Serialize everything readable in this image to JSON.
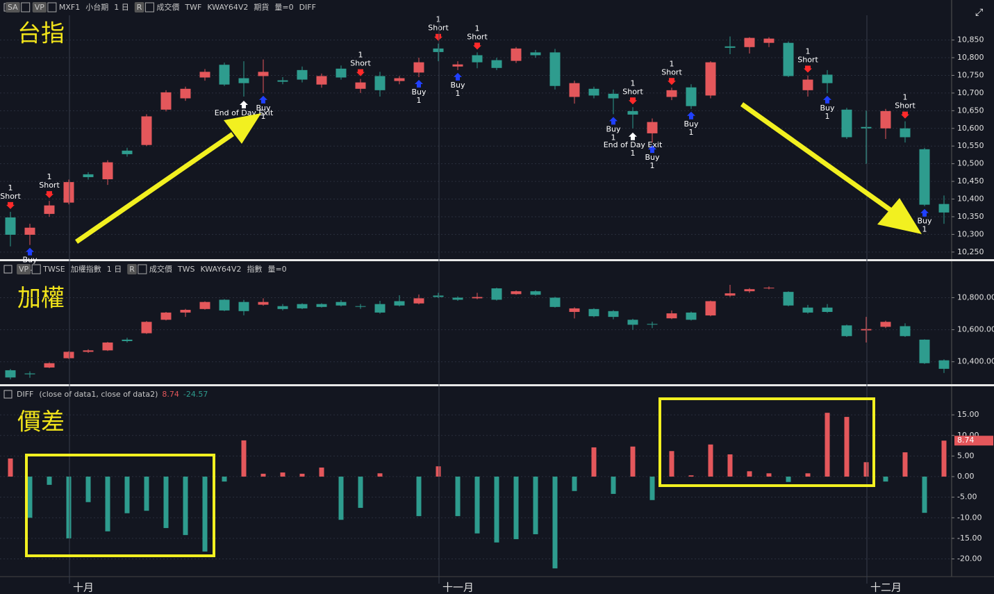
{
  "chart_data": [
    {
      "type": "candlestick",
      "title": "台指",
      "up_color": "#e4575b",
      "down_color": "#2e9c8e",
      "grid": true,
      "header": [
        {
          "text": "SA",
          "boxed": true
        },
        {
          "text": "VP",
          "boxed": true
        },
        {
          "text": "MXF1"
        },
        {
          "text": "小台期",
          "boxed": false
        },
        {
          "text": "1 日"
        },
        {
          "text": "R",
          "boxed": true
        },
        {
          "text": "成交價"
        },
        {
          "text": "TWF"
        },
        {
          "text": "KWAY64V2"
        },
        {
          "text": "期貨"
        },
        {
          "text": "量=0"
        },
        {
          "text": "DIFF"
        }
      ],
      "ylim": [
        10230,
        10920
      ],
      "yticks": [
        {
          "value": 10250,
          "label": "10,250"
        },
        {
          "value": 10300,
          "label": "10,300"
        },
        {
          "value": 10350,
          "label": "10,350"
        },
        {
          "value": 10400,
          "label": "10,400"
        },
        {
          "value": 10450,
          "label": "10,450"
        },
        {
          "value": 10500,
          "label": "10,500"
        },
        {
          "value": 10550,
          "label": "10,550"
        },
        {
          "value": 10600,
          "label": "10,600"
        },
        {
          "value": 10650,
          "label": "10,650"
        },
        {
          "value": 10700,
          "label": "10,700"
        },
        {
          "value": 10750,
          "label": "10,750"
        },
        {
          "value": 10800,
          "label": "10,800"
        },
        {
          "value": 10850,
          "label": "10,850"
        }
      ],
      "open": [
        10348,
        10299,
        10358,
        10390,
        10470,
        10456,
        10537,
        10553,
        10653,
        10685,
        10744,
        10780,
        10742,
        10748,
        10736,
        10765,
        10724,
        10769,
        10712,
        10748,
        10734,
        10758,
        10826,
        10775,
        10807,
        10793,
        10791,
        10815,
        10815,
        10689,
        10712,
        10698,
        10649,
        10586,
        10689,
        10716,
        10693,
        10832,
        10830,
        10842,
        10842,
        10708,
        10752,
        10653,
        10604,
        10600,
        10600,
        10541,
        10386
      ],
      "high": [
        10364,
        10330,
        10395,
        10455,
        10476,
        10510,
        10545,
        10640,
        10708,
        10718,
        10768,
        10786,
        10790,
        10795,
        10745,
        10775,
        10755,
        10778,
        10740,
        10760,
        10748,
        10800,
        10840,
        10790,
        10815,
        10800,
        10830,
        10822,
        10825,
        10735,
        10718,
        10710,
        10660,
        10628,
        10715,
        10725,
        10790,
        10860,
        10858,
        10858,
        10846,
        10750,
        10765,
        10658,
        10650,
        10655,
        10620,
        10545,
        10410
      ],
      "low": [
        10266,
        10270,
        10350,
        10385,
        10455,
        10440,
        10520,
        10550,
        10648,
        10678,
        10735,
        10720,
        10690,
        10700,
        10725,
        10730,
        10715,
        10738,
        10700,
        10690,
        10725,
        10745,
        10790,
        10765,
        10770,
        10765,
        10785,
        10800,
        10710,
        10670,
        10685,
        10640,
        10600,
        10560,
        10680,
        10655,
        10685,
        10810,
        10812,
        10830,
        10745,
        10690,
        10700,
        10570,
        10500,
        10570,
        10560,
        10380,
        10330
      ],
      "close": [
        10299,
        10319,
        10382,
        10448,
        10462,
        10504,
        10527,
        10634,
        10702,
        10712,
        10760,
        10724,
        10728,
        10760,
        10732,
        10738,
        10748,
        10744,
        10730,
        10708,
        10742,
        10787,
        10816,
        10781,
        10787,
        10771,
        10826,
        10807,
        10720,
        10728,
        10693,
        10685,
        10639,
        10618,
        10708,
        10663,
        10787,
        10828,
        10856,
        10854,
        10748,
        10738,
        10728,
        10575,
        10600,
        10649,
        10575,
        10384,
        10362
      ],
      "signals": [
        {
          "index": 0,
          "qty": "1",
          "label": "Short"
        },
        {
          "index": 2,
          "qty": "1",
          "label": "Short"
        },
        {
          "index": 18,
          "qty": "1",
          "label": "Short"
        },
        {
          "index": 22,
          "qty": "1",
          "label": "Short"
        },
        {
          "index": 24,
          "qty": "1",
          "label": "Short"
        },
        {
          "index": 32,
          "qty": "1",
          "label": "Short"
        },
        {
          "index": 34,
          "qty": "1",
          "label": "Short"
        },
        {
          "index": 41,
          "qty": "1",
          "label": "Short"
        },
        {
          "index": 46,
          "qty": "1",
          "label": "Short"
        },
        {
          "index": 1,
          "qty": "1",
          "label": "Buy"
        },
        {
          "index": 13,
          "qty": "1",
          "label": "Buy"
        },
        {
          "index": 21,
          "qty": "1",
          "label": "Buy"
        },
        {
          "index": 23,
          "qty": "1",
          "label": "Buy"
        },
        {
          "index": 31,
          "qty": "1",
          "label": "Buy"
        },
        {
          "index": 33,
          "qty": "1",
          "label": "Buy"
        },
        {
          "index": 35,
          "qty": "1",
          "label": "Buy"
        },
        {
          "index": 42,
          "qty": "1",
          "label": "Buy"
        },
        {
          "index": 47,
          "qty": "1",
          "label": "Buy"
        },
        {
          "index": 12,
          "qty": "1",
          "label": "End of Day Exit"
        },
        {
          "index": 32,
          "qty": "1",
          "label": "End of Day Exit"
        }
      ]
    },
    {
      "type": "candlestick",
      "title": "加權",
      "up_color": "#e4575b",
      "down_color": "#2e9c8e",
      "grid": true,
      "header": [
        {
          "text": "VP",
          "boxed": true
        },
        {
          "text": "TWSE"
        },
        {
          "text": "加權指數"
        },
        {
          "text": "1 日"
        },
        {
          "text": "R",
          "boxed": true
        },
        {
          "text": "成交價"
        },
        {
          "text": "TWS"
        },
        {
          "text": "KWAY64V2"
        },
        {
          "text": "指數"
        },
        {
          "text": "量=0"
        }
      ],
      "ylim": [
        10260,
        10945
      ],
      "yticks": [
        {
          "value": 10400,
          "label": "10,400.00"
        },
        {
          "value": 10600,
          "label": "10,600.00"
        },
        {
          "value": 10800,
          "label": "10,800.00"
        }
      ],
      "open": [
        10347,
        10327,
        10364,
        10422,
        10462,
        10471,
        10538,
        10578,
        10662,
        10707,
        10729,
        10787,
        10773,
        10756,
        10747,
        10760,
        10760,
        10773,
        10747,
        10760,
        10778,
        10764,
        10813,
        10800,
        10796,
        10858,
        10822,
        10840,
        10800,
        10711,
        10729,
        10716,
        10662,
        10636,
        10671,
        10707,
        10689,
        10813,
        10840,
        10858,
        10836,
        10738,
        10738,
        10627,
        10596,
        10618,
        10622,
        10538,
        10409
      ],
      "high": [
        10355,
        10340,
        10396,
        10466,
        10478,
        10524,
        10550,
        10654,
        10711,
        10730,
        10777,
        10791,
        10786,
        10796,
        10760,
        10765,
        10765,
        10785,
        10760,
        10780,
        10815,
        10820,
        10830,
        10808,
        10830,
        10862,
        10845,
        10846,
        10805,
        10740,
        10734,
        10722,
        10668,
        10650,
        10720,
        10713,
        10782,
        10880,
        10860,
        10870,
        10840,
        10755,
        10760,
        10632,
        10680,
        10656,
        10640,
        10540,
        10415
      ],
      "low": [
        10290,
        10300,
        10360,
        10418,
        10455,
        10467,
        10520,
        10574,
        10658,
        10680,
        10725,
        10716,
        10690,
        10750,
        10720,
        10728,
        10738,
        10745,
        10730,
        10700,
        10745,
        10758,
        10798,
        10780,
        10790,
        10782,
        10818,
        10812,
        10738,
        10670,
        10678,
        10665,
        10600,
        10610,
        10666,
        10657,
        10684,
        10805,
        10830,
        10852,
        10746,
        10700,
        10705,
        10555,
        10520,
        10610,
        10555,
        10386,
        10330
      ],
      "close": [
        10302,
        10322,
        10391,
        10462,
        10471,
        10520,
        10529,
        10649,
        10707,
        10724,
        10773,
        10720,
        10716,
        10773,
        10729,
        10733,
        10742,
        10751,
        10745,
        10707,
        10751,
        10796,
        10804,
        10787,
        10804,
        10787,
        10840,
        10818,
        10742,
        10733,
        10684,
        10680,
        10631,
        10634,
        10702,
        10662,
        10778,
        10827,
        10853,
        10862,
        10751,
        10707,
        10711,
        10560,
        10604,
        10649,
        10560,
        10391,
        10356
      ]
    },
    {
      "type": "bar",
      "title": "價差",
      "up_color": "#e4575b",
      "down_color": "#2e9c8e",
      "grid": true,
      "header": [
        {
          "text": "DIFF"
        },
        {
          "text": "(close of data1,  close of data2)"
        }
      ],
      "min_readout": -24.57,
      "ylim": [
        -24.3,
        18.4
      ],
      "yticks": [
        {
          "value": -20,
          "label": "-20.00"
        },
        {
          "value": -15,
          "label": "-15.00"
        },
        {
          "value": -10,
          "label": "-10.00"
        },
        {
          "value": -5,
          "label": "-5.00"
        },
        {
          "value": 0,
          "label": "0.00"
        },
        {
          "value": 5,
          "label": "5.00"
        },
        {
          "value": 10,
          "label": "10.00"
        },
        {
          "value": 15,
          "label": "15.00"
        }
      ],
      "categories": [
        null,
        null,
        null,
        "十月",
        null,
        null,
        null,
        null,
        null,
        null,
        null,
        null,
        null,
        null,
        null,
        null,
        null,
        null,
        null,
        null,
        null,
        null,
        "十一月",
        null,
        null,
        null,
        null,
        null,
        null,
        null,
        null,
        null,
        null,
        null,
        null,
        null,
        null,
        null,
        null,
        null,
        null,
        null,
        null,
        null,
        "十二月",
        null,
        null,
        null,
        null
      ],
      "values": [
        4.4,
        -10,
        -2,
        -15,
        -6.2,
        -13.3,
        -8.9,
        -8.3,
        -12.5,
        -14.2,
        -18.2,
        -1.2,
        8.8,
        0.7,
        1,
        0.7,
        2.2,
        -10.5,
        -7.6,
        0.8,
        0,
        -9.6,
        2.5,
        -9.6,
        -13.8,
        -16,
        -15.2,
        -14,
        -22.3,
        -3.5,
        7.1,
        -4.2,
        7.3,
        -5.7,
        6.2,
        0.3,
        7.8,
        5.4,
        1.3,
        0.8,
        -1.3,
        0.8,
        15.5,
        14.5,
        3.5,
        -1.2,
        5.9,
        -8.8,
        8.74
      ]
    }
  ]
}
